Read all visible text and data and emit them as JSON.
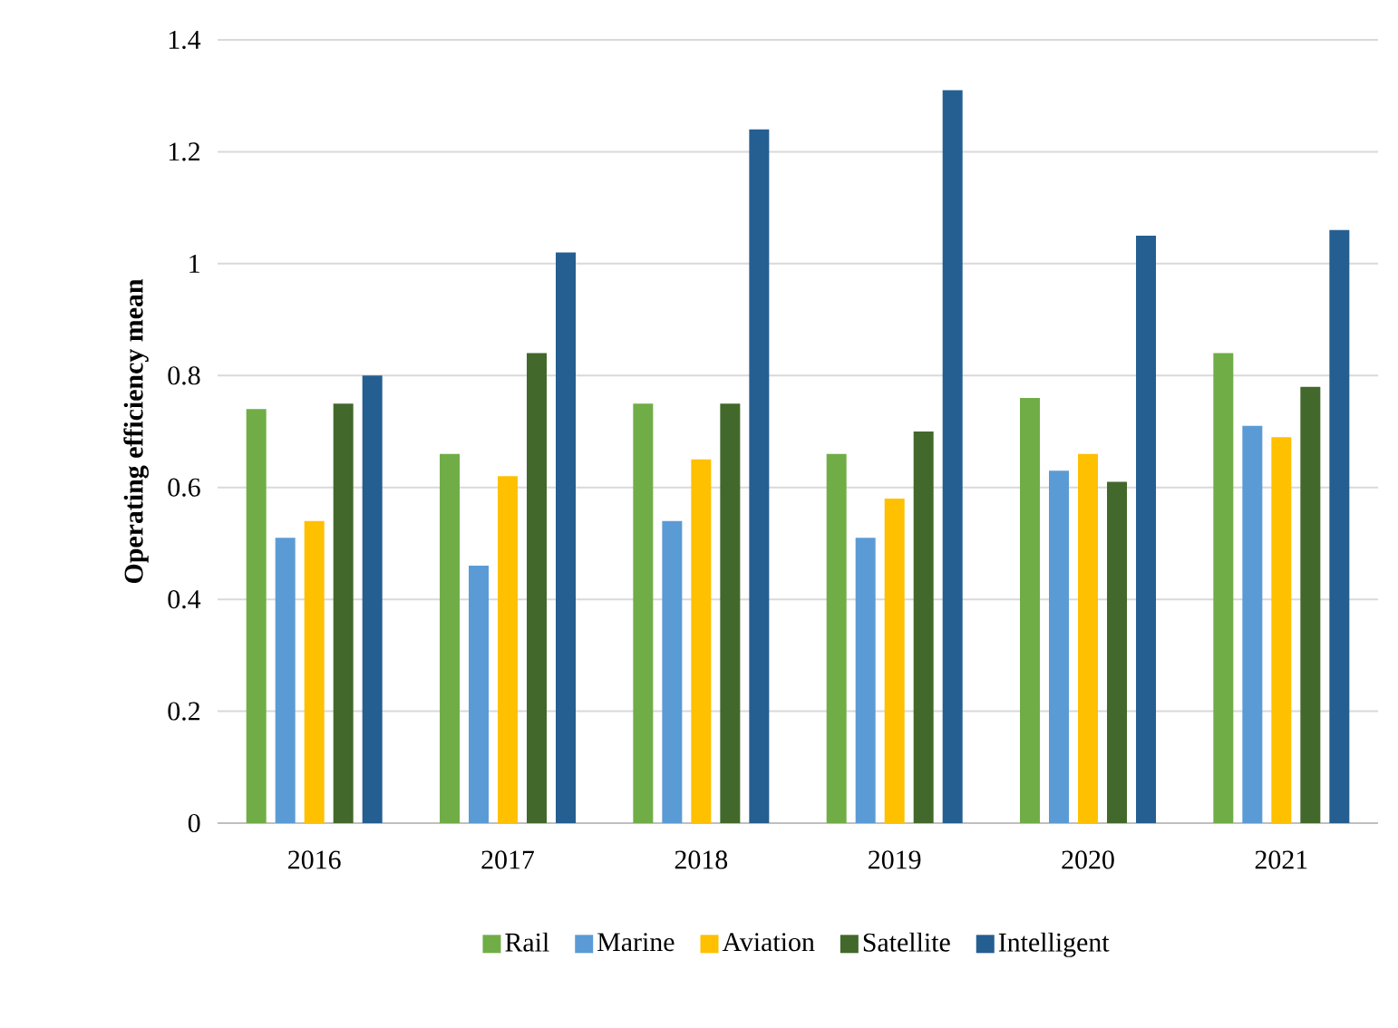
{
  "chart_data": {
    "type": "bar",
    "ylabel": "Operating efficiency mean",
    "categories": [
      "2016",
      "2017",
      "2018",
      "2019",
      "2020",
      "2021"
    ],
    "series": [
      {
        "name": "Rail",
        "color": "#70ad47",
        "values": [
          0.74,
          0.66,
          0.75,
          0.66,
          0.76,
          0.84
        ]
      },
      {
        "name": "Marine",
        "color": "#5b9bd5",
        "values": [
          0.51,
          0.46,
          0.54,
          0.51,
          0.63,
          0.71
        ]
      },
      {
        "name": "Aviation",
        "color": "#ffc000",
        "values": [
          0.54,
          0.62,
          0.65,
          0.58,
          0.66,
          0.69
        ]
      },
      {
        "name": "Satellite",
        "color": "#43682b",
        "values": [
          0.75,
          0.84,
          0.75,
          0.7,
          0.61,
          0.78
        ]
      },
      {
        "name": "Intelligent",
        "color": "#255e91",
        "values": [
          0.8,
          1.02,
          1.24,
          1.31,
          1.05,
          1.06
        ]
      }
    ],
    "ylim": [
      0,
      1.4
    ],
    "yticks": [
      0,
      0.2,
      0.4,
      0.6,
      0.8,
      1,
      1.2,
      1.4
    ],
    "grid": "y",
    "legend": "bottom"
  }
}
